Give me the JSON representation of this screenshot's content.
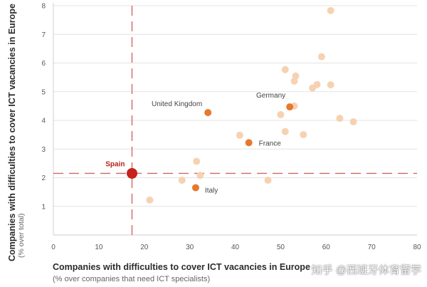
{
  "chart_data": {
    "type": "scatter",
    "xlabel": "Companies with difficulties to cover ICT vacancies in Europe",
    "xlabel_sub": "(% over companies that need ICT specialists)",
    "ylabel": "Companies with difficulties to cover ICT vacancies in Europe",
    "ylabel_sub": "(% over total)",
    "xlim": [
      0,
      80
    ],
    "ylim": [
      0,
      8
    ],
    "x_ticks": [
      "0",
      "10",
      "20",
      "30",
      "40",
      "50",
      "60",
      "70",
      "80"
    ],
    "y_ticks": [
      "1",
      "2",
      "3",
      "4",
      "5",
      "6",
      "7",
      "8"
    ],
    "reference_lines": {
      "x": 17.3,
      "y": 2.15
    },
    "colors": {
      "background_points": "#f6d2b2",
      "labeled_points": "#e8782e",
      "highlight": "#c8201a",
      "reference_line": "#c96a62",
      "axis": "#cfcfcf"
    },
    "points": [
      {
        "x": 17.3,
        "y": 2.15,
        "label": "Spain",
        "group": "highlight"
      },
      {
        "x": 34,
        "y": 4.27,
        "label": "United Kingdom",
        "group": "labeled"
      },
      {
        "x": 52,
        "y": 4.47,
        "label": "Germany",
        "group": "labeled"
      },
      {
        "x": 43,
        "y": 3.22,
        "label": "France",
        "group": "labeled"
      },
      {
        "x": 31.3,
        "y": 1.65,
        "label": "Italy",
        "group": "labeled"
      },
      {
        "x": 61,
        "y": 7.83,
        "label": "",
        "group": "other"
      },
      {
        "x": 59,
        "y": 6.22,
        "label": "",
        "group": "other"
      },
      {
        "x": 51,
        "y": 5.77,
        "label": "",
        "group": "other"
      },
      {
        "x": 53.3,
        "y": 5.55,
        "label": "",
        "group": "other"
      },
      {
        "x": 53,
        "y": 5.37,
        "label": "",
        "group": "other"
      },
      {
        "x": 57,
        "y": 5.13,
        "label": "",
        "group": "other"
      },
      {
        "x": 58,
        "y": 5.25,
        "label": "",
        "group": "other"
      },
      {
        "x": 61,
        "y": 5.24,
        "label": "",
        "group": "other"
      },
      {
        "x": 53,
        "y": 4.5,
        "label": "",
        "group": "other"
      },
      {
        "x": 50,
        "y": 4.2,
        "label": "",
        "group": "other"
      },
      {
        "x": 63,
        "y": 4.07,
        "label": "",
        "group": "other"
      },
      {
        "x": 66,
        "y": 3.95,
        "label": "",
        "group": "other"
      },
      {
        "x": 51,
        "y": 3.61,
        "label": "",
        "group": "other"
      },
      {
        "x": 55,
        "y": 3.5,
        "label": "",
        "group": "other"
      },
      {
        "x": 41,
        "y": 3.48,
        "label": "",
        "group": "other"
      },
      {
        "x": 31.5,
        "y": 2.57,
        "label": "",
        "group": "other"
      },
      {
        "x": 32.3,
        "y": 2.08,
        "label": "",
        "group": "other"
      },
      {
        "x": 28.3,
        "y": 1.91,
        "label": "",
        "group": "other"
      },
      {
        "x": 47.2,
        "y": 1.91,
        "label": "",
        "group": "other"
      },
      {
        "x": 21.2,
        "y": 1.22,
        "label": "",
        "group": "other"
      }
    ]
  },
  "watermark": "知乎 @西班牙体育留学"
}
